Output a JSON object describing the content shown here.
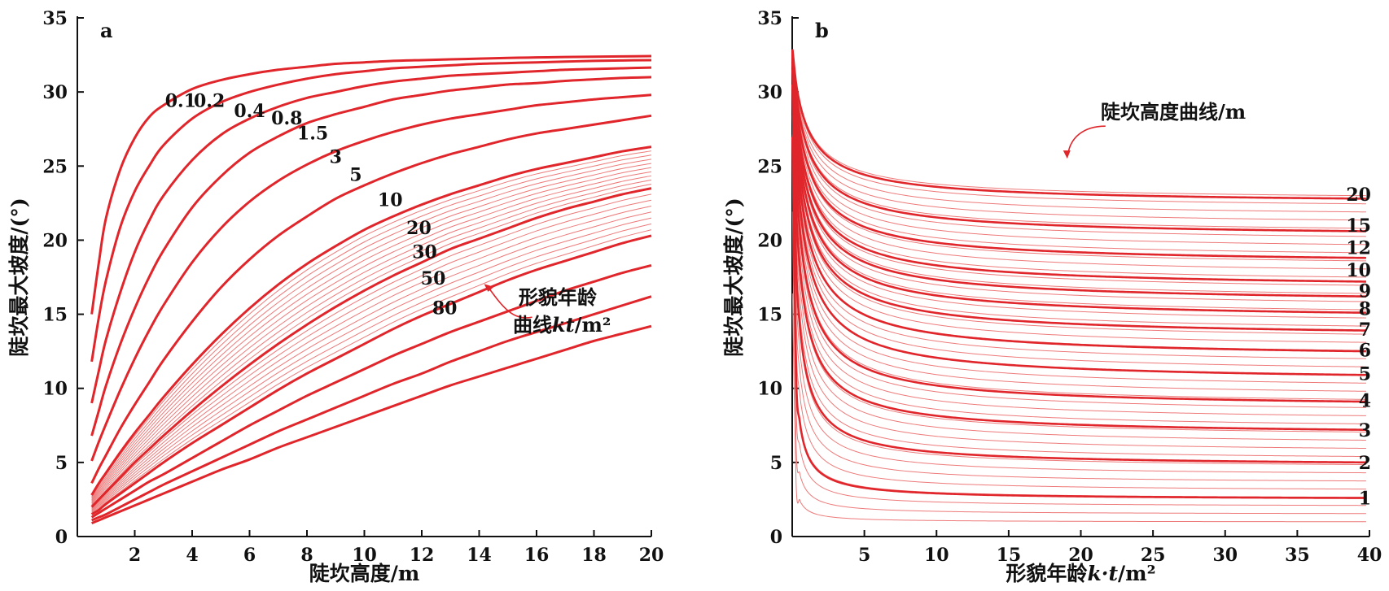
{
  "chart_data": [
    {
      "panel_label": "a",
      "type": "line",
      "xlabel": "陡坎高度/m",
      "ylabel": "陡坎最大坡度/(°)",
      "xlim": [
        0,
        20
      ],
      "ylim": [
        0,
        35
      ],
      "xticks": [
        0,
        2,
        4,
        6,
        8,
        10,
        12,
        14,
        16,
        18,
        20
      ],
      "yticks": [
        0,
        5,
        10,
        15,
        20,
        25,
        30,
        35
      ],
      "x_origin_label": "0",
      "xtick_labels": [
        "2",
        "4",
        "6",
        "8",
        "10",
        "12",
        "14",
        "16",
        "18",
        "20"
      ],
      "ytick_labels": [
        "0",
        "5",
        "10",
        "15",
        "20",
        "25",
        "30",
        "35"
      ],
      "annotation": {
        "line1": "形貌年龄",
        "line2": "曲线",
        "var": "kt",
        "unit": "/m²",
        "arrow_to": [
          14.2,
          17.0
        ]
      },
      "x_values": [
        0.5,
        0.75,
        1,
        1.5,
        2,
        2.5,
        3,
        4,
        5,
        6,
        7,
        8,
        9,
        10,
        11,
        12,
        13,
        14,
        15,
        16,
        17,
        18,
        19,
        20
      ],
      "series": [
        {
          "name": "0.1",
          "label_pos": [
            3.6,
            29.0
          ],
          "values": [
            15.0,
            18.5,
            21.5,
            24.8,
            26.9,
            28.3,
            29.1,
            30.2,
            30.8,
            31.2,
            31.5,
            31.7,
            31.9,
            32.0,
            32.1,
            32.15,
            32.2,
            32.25,
            32.3,
            32.33,
            32.36,
            32.38,
            32.4,
            32.42
          ]
        },
        {
          "name": "0.2",
          "label_pos": [
            4.6,
            29.0
          ],
          "values": [
            11.8,
            14.8,
            17.3,
            20.9,
            23.3,
            25.0,
            26.4,
            28.2,
            29.3,
            30.0,
            30.5,
            30.9,
            31.2,
            31.4,
            31.6,
            31.7,
            31.8,
            31.9,
            31.95,
            32.0,
            32.05,
            32.1,
            32.13,
            32.15
          ]
        },
        {
          "name": "0.4",
          "label_pos": [
            6.0,
            28.3
          ],
          "values": [
            9.0,
            11.2,
            13.3,
            16.5,
            19.2,
            21.3,
            23.0,
            25.4,
            27.1,
            28.2,
            29.0,
            29.6,
            30.0,
            30.4,
            30.7,
            30.9,
            31.1,
            31.2,
            31.3,
            31.4,
            31.5,
            31.55,
            31.6,
            31.65
          ]
        },
        {
          "name": "0.8",
          "label_pos": [
            7.3,
            27.8
          ],
          "values": [
            6.8,
            8.5,
            10.2,
            13.0,
            15.4,
            17.5,
            19.3,
            22.2,
            24.3,
            25.9,
            27.0,
            27.9,
            28.5,
            29.0,
            29.5,
            29.8,
            30.1,
            30.3,
            30.5,
            30.6,
            30.75,
            30.85,
            30.95,
            31.0
          ]
        },
        {
          "name": "1.5",
          "label_pos": [
            8.2,
            26.8
          ],
          "values": [
            5.1,
            6.4,
            7.6,
            9.9,
            12.0,
            13.9,
            15.6,
            18.5,
            20.8,
            22.6,
            24.0,
            25.1,
            26.0,
            26.7,
            27.3,
            27.8,
            28.2,
            28.5,
            28.8,
            29.1,
            29.3,
            29.5,
            29.65,
            29.8
          ]
        },
        {
          "name": "3",
          "label_pos": [
            9.0,
            25.2
          ],
          "values": [
            3.6,
            4.6,
            5.5,
            7.3,
            8.9,
            10.4,
            11.9,
            14.5,
            16.8,
            18.7,
            20.3,
            21.6,
            22.8,
            23.7,
            24.5,
            25.2,
            25.8,
            26.3,
            26.8,
            27.2,
            27.5,
            27.8,
            28.1,
            28.4
          ]
        },
        {
          "name": "5",
          "label_pos": [
            9.7,
            24.0
          ],
          "values": [
            2.8,
            3.6,
            4.3,
            5.7,
            7.0,
            8.2,
            9.4,
            11.6,
            13.6,
            15.4,
            17.0,
            18.4,
            19.6,
            20.7,
            21.6,
            22.4,
            23.1,
            23.7,
            24.3,
            24.8,
            25.2,
            25.6,
            26.0,
            26.3
          ]
        },
        {
          "name": "10",
          "label_pos": [
            10.9,
            22.3
          ],
          "values": [
            2.0,
            2.5,
            3.0,
            4.0,
            5.0,
            5.9,
            6.8,
            8.5,
            10.1,
            11.6,
            13.0,
            14.3,
            15.5,
            16.6,
            17.6,
            18.5,
            19.4,
            20.1,
            20.8,
            21.5,
            22.1,
            22.6,
            23.1,
            23.5
          ]
        },
        {
          "name": "20",
          "label_pos": [
            11.9,
            20.4
          ],
          "values": [
            1.5,
            1.8,
            2.2,
            2.9,
            3.6,
            4.3,
            5.0,
            6.3,
            7.5,
            8.7,
            9.9,
            11.0,
            12.0,
            13.0,
            14.0,
            14.9,
            15.7,
            16.5,
            17.3,
            18.0,
            18.6,
            19.2,
            19.8,
            20.3
          ]
        },
        {
          "name": "30",
          "label_pos": [
            12.1,
            18.8
          ],
          "values": [
            1.3,
            1.6,
            1.9,
            2.5,
            3.1,
            3.7,
            4.2,
            5.3,
            6.4,
            7.5,
            8.5,
            9.5,
            10.4,
            11.3,
            12.2,
            13.0,
            13.8,
            14.5,
            15.2,
            15.9,
            16.6,
            17.2,
            17.8,
            18.3
          ]
        },
        {
          "name": "50",
          "label_pos": [
            12.4,
            17.0
          ],
          "values": [
            1.1,
            1.3,
            1.5,
            2.0,
            2.5,
            3.0,
            3.5,
            4.4,
            5.3,
            6.2,
            7.1,
            7.9,
            8.7,
            9.5,
            10.3,
            11.0,
            11.8,
            12.5,
            13.2,
            13.8,
            14.4,
            15.0,
            15.6,
            16.2
          ]
        },
        {
          "name": "80",
          "label_pos": [
            12.8,
            15.0
          ],
          "values": [
            0.9,
            1.1,
            1.3,
            1.7,
            2.1,
            2.5,
            2.9,
            3.7,
            4.5,
            5.2,
            6.0,
            6.7,
            7.4,
            8.1,
            8.8,
            9.5,
            10.2,
            10.8,
            11.4,
            12.0,
            12.6,
            13.2,
            13.7,
            14.2
          ]
        }
      ],
      "thin_series_note": "thin lighter curves between 5 and 20 (kt values in between)"
    },
    {
      "panel_label": "b",
      "type": "line",
      "xlabel": "形貌年龄",
      "xlabel_var": "k·t",
      "xlabel_unit": "/m²",
      "ylabel": "陡坎最大坡度/(°)",
      "xlim": [
        0,
        40
      ],
      "ylim": [
        0,
        35
      ],
      "xticks": [
        0,
        5,
        10,
        15,
        20,
        25,
        30,
        35,
        40
      ],
      "yticks": [
        0,
        5,
        10,
        15,
        20,
        25,
        30,
        35
      ],
      "x_origin_label": "0",
      "xtick_labels": [
        "5",
        "10",
        "15",
        "20",
        "25",
        "30",
        "35",
        "40"
      ],
      "ytick_labels": [
        "0",
        "5",
        "10",
        "15",
        "20",
        "25",
        "30",
        "35"
      ],
      "annotation": {
        "text": "陡坎高度曲线/m",
        "arrow_to": [
          19.0,
          25.5
        ]
      },
      "series_names": [
        "1",
        "2",
        "3",
        "4",
        "5",
        "6",
        "7",
        "8",
        "9",
        "10",
        "12",
        "15",
        "20"
      ],
      "series_end_values": [
        2.6,
        5.0,
        7.2,
        9.1,
        10.9,
        12.5,
        13.9,
        15.1,
        16.2,
        17.2,
        18.8,
        20.6,
        22.8
      ],
      "label_y_positions": [
        2.6,
        5.0,
        7.2,
        9.2,
        11.0,
        12.6,
        14.0,
        15.4,
        16.6,
        18.0,
        19.5,
        21.0,
        23.1
      ]
    }
  ],
  "colors": {
    "thick": "#e0252b",
    "thin": "#ee7a7a",
    "axis": "#111111",
    "text": "#111111"
  }
}
